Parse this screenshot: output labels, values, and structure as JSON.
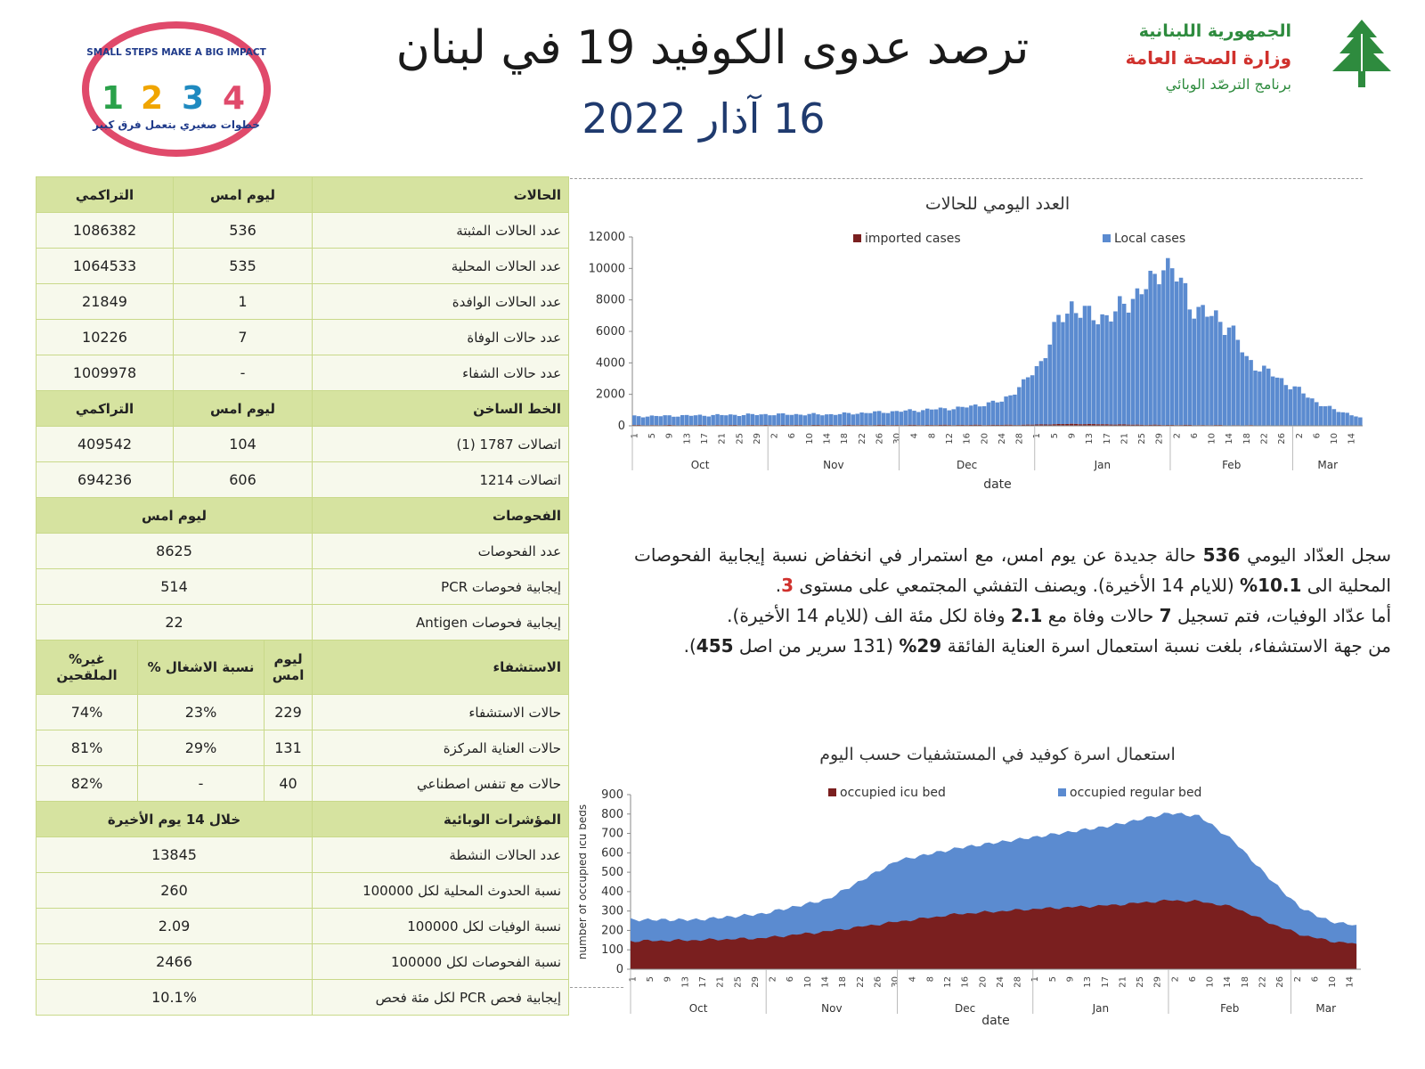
{
  "header": {
    "title": "ترصد عدوى الكوفيد 19 في لبنان",
    "date": "16 آذار 2022",
    "ministry_line1": "الجمهورية اللبنانية",
    "ministry_line2": "وزارة الصحة العامة",
    "ministry_line3": "برنامج الترصّد الوبائي",
    "campaign_top": "SMALL STEPS MAKE A BIG IMPACT",
    "campaign_bottom": "خطوات صغيري بتعمل فرق كبير",
    "campaign_digits": [
      "1",
      "2",
      "3",
      "4"
    ],
    "colors": {
      "accent_green": "#2e8b3e",
      "accent_red": "#d0312d",
      "title_blue": "#1f3a6e",
      "local_blue": "#5b8bd0",
      "imported_red": "#7a1f1f",
      "icu_red": "#7a1f1f",
      "regular_blue": "#5b8bd0"
    }
  },
  "table": {
    "cases": {
      "header": [
        "الحالات",
        "ليوم امس",
        "التراكمي"
      ],
      "rows": [
        [
          "عدد الحالات المثبتة",
          "536",
          "1086382"
        ],
        [
          "عدد الحالات المحلية",
          "535",
          "1064533"
        ],
        [
          "عدد الحالات الوافدة",
          "1",
          "21849"
        ],
        [
          "عدد حالات الوفاة",
          "7",
          "10226"
        ],
        [
          "عدد حالات الشفاء",
          "-",
          "1009978"
        ]
      ]
    },
    "hotline": {
      "header": [
        "الخط الساخن",
        "ليوم امس",
        "التراكمي"
      ],
      "rows": [
        [
          "اتصالات 1787 (1)",
          "104",
          "409542"
        ],
        [
          "اتصالات 1214",
          "606",
          "694236"
        ]
      ]
    },
    "tests": {
      "header": [
        "الفحوصات",
        "ليوم امس"
      ],
      "rows": [
        [
          "عدد الفحوصات",
          "8625"
        ],
        [
          "إيجابية فحوصات PCR",
          "514"
        ],
        [
          "إيجابية فحوصات Antigen",
          "22"
        ]
      ]
    },
    "hospital": {
      "header": [
        "الاستشفاء",
        "ليوم امس",
        "% نسبة الاشغال",
        "%غير الملقحين"
      ],
      "rows": [
        [
          "حالات الاستشفاء",
          "229",
          "23%",
          "74%"
        ],
        [
          "حالات العناية المركزة",
          "131",
          "29%",
          "81%"
        ],
        [
          "حالات مع تنفس اصطناعي",
          "40",
          "-",
          "82%"
        ]
      ]
    },
    "indicators": {
      "header": [
        "المؤشرات الوبائية",
        "خلال 14 يوم الأخيرة"
      ],
      "rows": [
        [
          "عدد الحالات النشطة",
          "13845"
        ],
        [
          "نسبة الحدوث المحلية لكل 100000",
          "260"
        ],
        [
          "نسبة الوفيات لكل 100000",
          "2.09"
        ],
        [
          "نسبة الفحوصات لكل 100000",
          "2466"
        ],
        [
          "إيجابية فحص PCR لكل مئة فحص",
          "10.1%"
        ]
      ]
    }
  },
  "summary": {
    "p1_a": "سجل العدّاد اليومي ",
    "p1_b": "536",
    "p1_c": " حالة جديدة عن يوم امس، مع استمرار في انخفاض نسبة إيجابية الفحوصات المحلية الى ",
    "p1_d": "10.1%",
    "p1_e": " (للايام 14 الأخيرة). ويصنف التفشي المجتمعي على مستوى ",
    "p1_f": "3",
    "p1_g": ".",
    "p2_a": "أما عدّاد الوفيات، فتم تسجيل ",
    "p2_b": "7",
    "p2_c": " حالات وفاة مع ",
    "p2_d": "2.1",
    "p2_e": " وفاة لكل مئة الف (للايام 14 الأخيرة).",
    "p3_a": "من جهة الاستشفاء، بلغت نسبة استعمال اسرة العناية الفائقة ",
    "p3_b": "29%",
    "p3_c": " (131",
    "p3_d": " سرير من اصل ",
    "p3_e": "455",
    "p3_f": ")."
  },
  "chart_data": [
    {
      "type": "bar",
      "title": "العدد اليومي للحالات",
      "xlabel": "date",
      "ylabel": "",
      "ylim": [
        0,
        12000
      ],
      "yticks": [
        "0",
        "2000",
        "4000",
        "6000",
        "8000",
        "10000",
        "12000"
      ],
      "stacked": true,
      "months": [
        "Oct",
        "Nov",
        "Dec",
        "Jan",
        "Feb",
        "Mar"
      ],
      "month_start_day": [
        0,
        31,
        61,
        92,
        123,
        151
      ],
      "day_labels_step": 4,
      "series": [
        {
          "name": "imported cases",
          "control_points": [
            [
              0,
              40
            ],
            [
              60,
              50
            ],
            [
              88,
              60
            ],
            [
              100,
              120
            ],
            [
              118,
              60
            ],
            [
              150,
              20
            ],
            [
              166,
              1
            ]
          ]
        },
        {
          "name": "Local cases",
          "control_points": [
            [
              0,
              560
            ],
            [
              15,
              620
            ],
            [
              30,
              680
            ],
            [
              45,
              680
            ],
            [
              61,
              880
            ],
            [
              75,
              1100
            ],
            [
              84,
              1500
            ],
            [
              89,
              2600
            ],
            [
              93,
              4000
            ],
            [
              97,
              6500
            ],
            [
              100,
              7600
            ],
            [
              104,
              6800
            ],
            [
              110,
              7000
            ],
            [
              114,
              8200
            ],
            [
              119,
              9100
            ],
            [
              121,
              10600
            ],
            [
              124,
              9400
            ],
            [
              127,
              7800
            ],
            [
              131,
              7000
            ],
            [
              136,
              6400
            ],
            [
              140,
              4200
            ],
            [
              146,
              3200
            ],
            [
              151,
              2400
            ],
            [
              156,
              1500
            ],
            [
              160,
              1000
            ],
            [
              163,
              800
            ],
            [
              166,
              535
            ]
          ]
        }
      ],
      "legend": "top-center"
    },
    {
      "type": "area",
      "title": "استعمال اسرة كوفيد في المستشفيات حسب اليوم",
      "xlabel": "date",
      "ylabel": "number of occupied icu beds",
      "ylim": [
        0,
        900
      ],
      "yticks": [
        "0",
        "100",
        "200",
        "300",
        "400",
        "500",
        "600",
        "700",
        "800",
        "900"
      ],
      "stacked": true,
      "months": [
        "Oct",
        "Nov",
        "Dec",
        "Jan",
        "Feb",
        "Mar"
      ],
      "month_start_day": [
        0,
        31,
        61,
        92,
        123,
        151
      ],
      "day_labels_step": 4,
      "series": [
        {
          "name": "occupied icu bed",
          "control_points": [
            [
              0,
              145
            ],
            [
              15,
              150
            ],
            [
              30,
              160
            ],
            [
              45,
              195
            ],
            [
              61,
              245
            ],
            [
              75,
              285
            ],
            [
              92,
              310
            ],
            [
              110,
              330
            ],
            [
              123,
              355
            ],
            [
              130,
              350
            ],
            [
              138,
              320
            ],
            [
              146,
              240
            ],
            [
              153,
              180
            ],
            [
              160,
              145
            ],
            [
              166,
              131
            ]
          ]
        },
        {
          "name": "occupied regular bed",
          "control_points": [
            [
              0,
              110
            ],
            [
              15,
              105
            ],
            [
              30,
              125
            ],
            [
              45,
              165
            ],
            [
              61,
              315
            ],
            [
              75,
              340
            ],
            [
              92,
              370
            ],
            [
              110,
              410
            ],
            [
              123,
              450
            ],
            [
              130,
              440
            ],
            [
              138,
              340
            ],
            [
              146,
              230
            ],
            [
              153,
              140
            ],
            [
              160,
              100
            ],
            [
              166,
              98
            ]
          ]
        }
      ],
      "legend": "top-center"
    }
  ]
}
